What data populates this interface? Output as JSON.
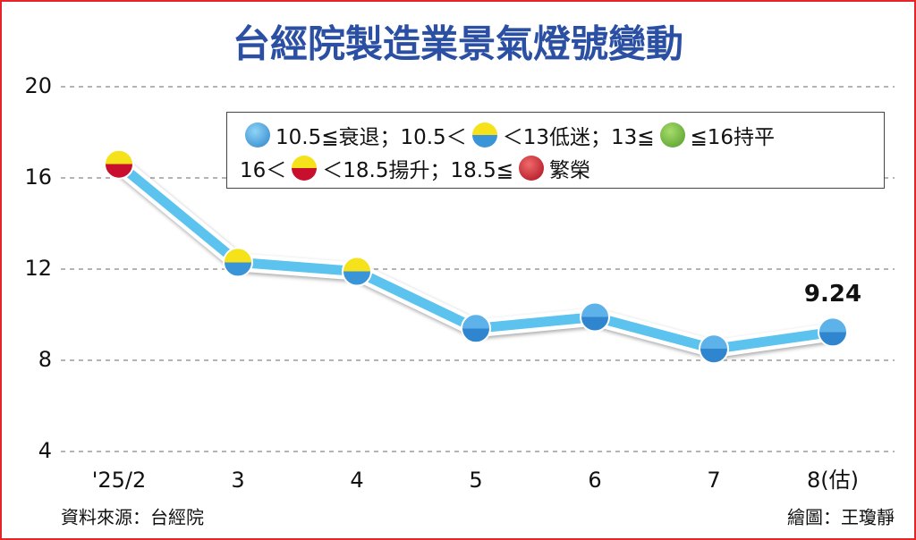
{
  "chart_data": {
    "type": "line",
    "title": "台經院製造業景氣燈號變動",
    "categories": [
      "'25/2",
      "3",
      "4",
      "5",
      "6",
      "7",
      "8(估)"
    ],
    "values": [
      16.6,
      12.3,
      11.9,
      9.4,
      9.9,
      8.5,
      9.24
    ],
    "value_labels": [
      null,
      null,
      null,
      null,
      null,
      null,
      "9.24"
    ],
    "color": "#5cc3ef",
    "marker_colors": [
      [
        "#f5e21a",
        "#c8102e"
      ],
      [
        "#f5e21a",
        "#3a94d8"
      ],
      [
        "#f5e21a",
        "#3a94d8"
      ],
      [
        "#5db2ea",
        "#2f86cf"
      ],
      [
        "#5db2ea",
        "#2f86cf"
      ],
      [
        "#5db2ea",
        "#2f86cf"
      ],
      [
        "#5db2ea",
        "#2f86cf"
      ]
    ],
    "ylim": [
      4,
      20
    ],
    "yticks": [
      4,
      8,
      12,
      16,
      20
    ],
    "grid": true,
    "legend": {
      "rows": [
        [
          "10.5≦衰退；10.5＜",
          "＜13低迷；13≦",
          "≦16持平"
        ],
        [
          "16＜",
          "＜18.5揚升；18.5≦",
          "繁榮"
        ]
      ]
    },
    "source": "資料來源：台經院",
    "credit": "繪圖：王瓊靜"
  }
}
